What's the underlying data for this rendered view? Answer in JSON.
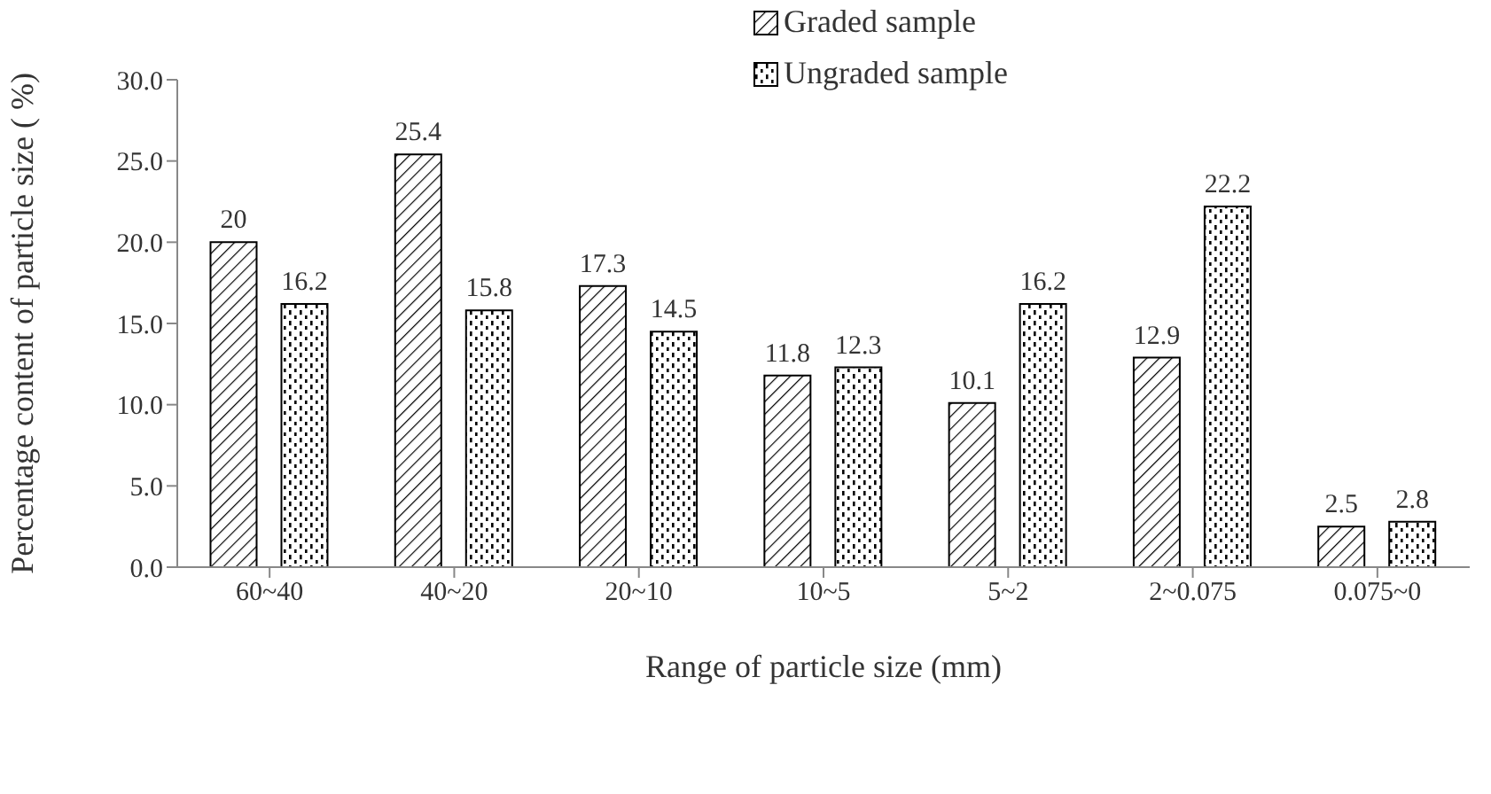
{
  "chart_data": {
    "type": "bar",
    "xlabel": "Range of particle size (mm)",
    "ylabel": "Percentage content of particle size ( %)",
    "categories": [
      "60~40",
      "40~20",
      "20~10",
      "10~5",
      "5~2",
      "2~0.075",
      "0.075~0"
    ],
    "series": [
      {
        "name": "Graded sample",
        "color": "#000000",
        "values": [
          20,
          25.4,
          17.3,
          11.8,
          10.1,
          12.9,
          2.5
        ]
      },
      {
        "name": "Ungraded sample",
        "color": "#000000",
        "values": [
          16.2,
          15.8,
          14.5,
          12.3,
          16.2,
          22.2,
          2.8
        ]
      }
    ],
    "ylim": [
      0,
      30
    ],
    "yticks": [
      {
        "value": 0,
        "label": "0.0"
      },
      {
        "value": 5,
        "label": "5.0"
      },
      {
        "value": 10,
        "label": "10.0"
      },
      {
        "value": 15,
        "label": "15.0"
      },
      {
        "value": 20,
        "label": "20.0"
      },
      {
        "value": 25,
        "label": "25.0"
      },
      {
        "value": 30,
        "label": "30.0"
      }
    ],
    "data_labels": true,
    "grid": false,
    "legend": "top right"
  }
}
